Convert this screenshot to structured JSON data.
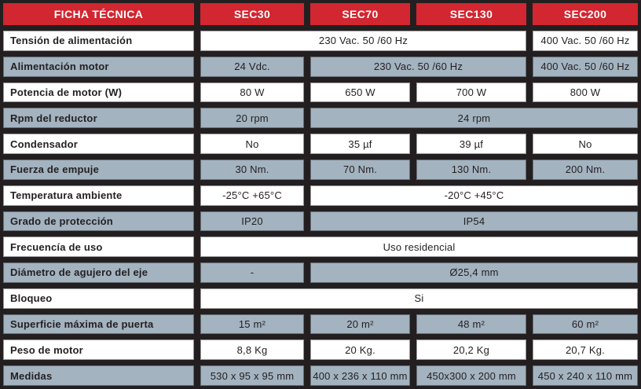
{
  "colors": {
    "header_red": "#d22630",
    "row_light": "#ffffff",
    "row_dark": "#a3b3c0",
    "background_black": "#231f20",
    "text_dark": "#231f20",
    "header_text": "#ffffff"
  },
  "table": {
    "header": {
      "title": "FICHA TÉCNICA",
      "columns": [
        "SEC30",
        "SEC70",
        "SEC130",
        "SEC200"
      ]
    },
    "rows": [
      {
        "label": "Tensión de alimentación",
        "cells": [
          {
            "text": "230 Vac. 50 /60 Hz",
            "span": 3
          },
          {
            "text": "400 Vac. 50 /60 Hz",
            "span": 1
          }
        ]
      },
      {
        "label": "Alimentación motor",
        "cells": [
          {
            "text": "24 Vdc.",
            "span": 1
          },
          {
            "text": "230 Vac. 50 /60 Hz",
            "span": 2
          },
          {
            "text": "400 Vac. 50 /60 Hz",
            "span": 1
          }
        ]
      },
      {
        "label": "Potencia de motor (W)",
        "cells": [
          {
            "text": "80 W",
            "span": 1
          },
          {
            "text": "650 W",
            "span": 1
          },
          {
            "text": "700 W",
            "span": 1
          },
          {
            "text": "800 W",
            "span": 1
          }
        ]
      },
      {
        "label": "Rpm del reductor",
        "cells": [
          {
            "text": "20 rpm",
            "span": 1
          },
          {
            "text": "24 rpm",
            "span": 3
          }
        ]
      },
      {
        "label": "Condensador",
        "cells": [
          {
            "text": "No",
            "span": 1
          },
          {
            "text": "35 µf",
            "span": 1
          },
          {
            "text": "39 µf",
            "span": 1
          },
          {
            "text": "No",
            "span": 1
          }
        ]
      },
      {
        "label": "Fuerza de empuje",
        "cells": [
          {
            "text": "30 Nm.",
            "span": 1
          },
          {
            "text": "70 Nm.",
            "span": 1
          },
          {
            "text": "130 Nm.",
            "span": 1
          },
          {
            "text": "200 Nm.",
            "span": 1
          }
        ]
      },
      {
        "label": "Temperatura ambiente",
        "cells": [
          {
            "text": "-25°C +65°C",
            "span": 1
          },
          {
            "text": "-20°C +45°C",
            "span": 3
          }
        ]
      },
      {
        "label": "Grado de protección",
        "cells": [
          {
            "text": "IP20",
            "span": 1
          },
          {
            "text": "IP54",
            "span": 3
          }
        ]
      },
      {
        "label": "Frecuencía de uso",
        "cells": [
          {
            "text": "Uso residencial",
            "span": 4
          }
        ]
      },
      {
        "label": "Diámetro de agujero del eje",
        "cells": [
          {
            "text": "-",
            "span": 1
          },
          {
            "text": "Ø25,4 mm",
            "span": 3
          }
        ]
      },
      {
        "label": "Bloqueo",
        "cells": [
          {
            "text": "Si",
            "span": 4
          }
        ]
      },
      {
        "label": "Superficie máxima de puerta",
        "cells": [
          {
            "text": "15 m²",
            "span": 1
          },
          {
            "text": "20 m²",
            "span": 1
          },
          {
            "text": "48 m²",
            "span": 1
          },
          {
            "text": "60 m²",
            "span": 1
          }
        ]
      },
      {
        "label": "Peso de motor",
        "cells": [
          {
            "text": "8,8 Kg",
            "span": 1
          },
          {
            "text": "20 Kg.",
            "span": 1
          },
          {
            "text": "20,2 Kg",
            "span": 1
          },
          {
            "text": "20,7 Kg.",
            "span": 1
          }
        ]
      },
      {
        "label": "Medidas",
        "cells": [
          {
            "text": "530 x 95 x 95 mm",
            "span": 1
          },
          {
            "text": "400 x 236 x 110 mm",
            "span": 1
          },
          {
            "text": "450x300 x 200 mm",
            "span": 1
          },
          {
            "text": "450 x 240 x 110 mm",
            "span": 1
          }
        ]
      }
    ]
  }
}
